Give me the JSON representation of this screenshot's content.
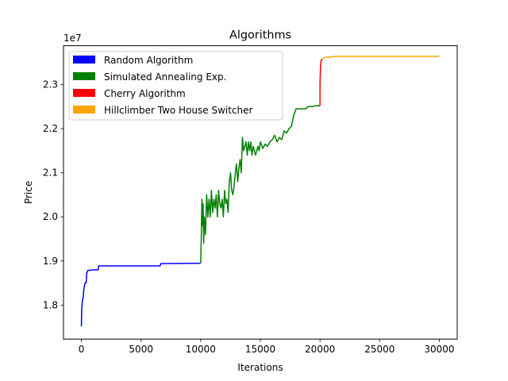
{
  "chart_data": {
    "type": "line",
    "title": "Algorithms",
    "xlabel": "Iterations",
    "ylabel": "Price",
    "y_scale_note": "1e7",
    "xlim": [
      -1500,
      31500
    ],
    "ylim": [
      1.723,
      2.388
    ],
    "xticks": [
      0,
      5000,
      10000,
      15000,
      20000,
      25000,
      30000
    ],
    "xtick_labels": [
      "0",
      "5000",
      "10000",
      "15000",
      "20000",
      "25000",
      "30000"
    ],
    "yticks": [
      1.8,
      1.9,
      2.0,
      2.1,
      2.2,
      2.3
    ],
    "ytick_labels": [
      "1.8",
      "1.9",
      "2.0",
      "2.1",
      "2.2",
      "2.3"
    ],
    "grid": false,
    "legend_position": "top-left",
    "series": [
      {
        "name": "Random Algorithm",
        "color": "#0000ff",
        "x": [
          0,
          10,
          30,
          60,
          100,
          150,
          200,
          250,
          300,
          400,
          450,
          500,
          550,
          800,
          850,
          1400,
          1450,
          6600,
          6650,
          10000
        ],
        "y": [
          1.752,
          1.772,
          1.792,
          1.803,
          1.813,
          1.817,
          1.835,
          1.843,
          1.85,
          1.851,
          1.874,
          1.875,
          1.879,
          1.879,
          1.88,
          1.88,
          1.889,
          1.889,
          1.894,
          1.895
        ]
      },
      {
        "name": "Simulated Annealing Exp.",
        "color": "#008000",
        "x": [
          10000,
          10050,
          10100,
          10150,
          10200,
          10250,
          10300,
          10400,
          10500,
          10600,
          10700,
          10800,
          10900,
          11000,
          11100,
          11200,
          11300,
          11400,
          11500,
          11600,
          11700,
          11800,
          11900,
          12000,
          12100,
          12200,
          12300,
          12400,
          12500,
          12600,
          12700,
          12800,
          12900,
          13000,
          13100,
          13200,
          13300,
          13400,
          13500,
          13600,
          13700,
          13800,
          13900,
          14000,
          14100,
          14200,
          14300,
          14400,
          14500,
          14600,
          14700,
          14800,
          14900,
          15000,
          15200,
          15400,
          15600,
          15800,
          16000,
          16200,
          16400,
          16600,
          16800,
          17000,
          17200,
          17400,
          17600,
          17800,
          18000,
          18200,
          18400,
          18600,
          18800,
          19000,
          19200,
          19400,
          19600,
          19800,
          19950,
          20000
        ],
        "y": [
          1.895,
          1.955,
          2.04,
          1.98,
          2.03,
          1.94,
          2.0,
          1.96,
          2.05,
          2.0,
          2.04,
          2.0,
          2.06,
          2.01,
          2.04,
          2.02,
          2.05,
          2.0,
          2.06,
          2.03,
          2.02,
          2.04,
          2.0,
          2.06,
          2.03,
          2.04,
          2.01,
          2.08,
          2.1,
          2.06,
          2.05,
          2.07,
          2.1,
          2.12,
          2.08,
          2.11,
          2.13,
          2.1,
          2.18,
          2.15,
          2.16,
          2.17,
          2.14,
          2.17,
          2.15,
          2.17,
          2.14,
          2.16,
          2.15,
          2.14,
          2.15,
          2.16,
          2.15,
          2.17,
          2.155,
          2.165,
          2.16,
          2.17,
          2.175,
          2.185,
          2.17,
          2.18,
          2.175,
          2.195,
          2.19,
          2.2,
          2.205,
          2.23,
          2.245,
          2.245,
          2.245,
          2.245,
          2.245,
          2.25,
          2.25,
          2.25,
          2.252,
          2.252,
          2.252,
          2.252
        ]
      },
      {
        "name": "Cherry Algorithm",
        "color": "#ff0000",
        "x": [
          20000,
          20000,
          20050,
          20100,
          20150,
          20200
        ],
        "y": [
          2.252,
          2.3,
          2.345,
          2.355,
          2.356,
          2.357
        ]
      },
      {
        "name": "Hillclimber Two House Switcher",
        "color": "#ffa500",
        "x": [
          20200,
          20300,
          20500,
          20800,
          21200,
          22000,
          25000,
          30000
        ],
        "y": [
          2.357,
          2.36,
          2.362,
          2.362,
          2.364,
          2.364,
          2.364,
          2.364
        ]
      }
    ]
  }
}
